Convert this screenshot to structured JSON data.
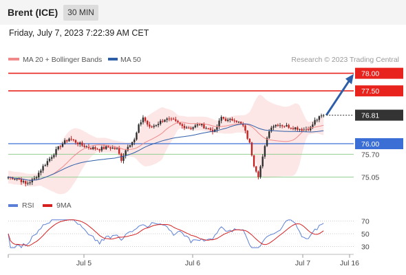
{
  "header": {
    "instrument": "Brent (ICE)",
    "timeframe": "30 MIN",
    "datetime": "Friday, July 7, 2023 7:22:39 AM CET"
  },
  "colors": {
    "resistance": "#e8221c",
    "support_blue": "#3b6fd6",
    "support_green": "#8fcf8f",
    "price_box": "#333333",
    "bollinger_fill": "#fde3e3",
    "ma20": "#f08a8a",
    "ma50": "#2d5ea8",
    "arrow": "#2d5ea8",
    "rsi": "#5b7fd6",
    "rsi_ma": "#d62020"
  },
  "chart_data": [
    {
      "type": "candlestick",
      "title": "",
      "legend": [
        {
          "name": "MA 20 + Bollinger Bands",
          "color": "#f08a8a"
        },
        {
          "name": "MA 50",
          "color": "#2d5ea8"
        }
      ],
      "legend_placement": "top-left",
      "credit": "Research © 2023 Trading Central",
      "x_ticks": [
        "Jul 5",
        "Jul 6",
        "Jul 7",
        "Jul 16"
      ],
      "ylim": [
        74.6,
        78.2
      ],
      "grid": false,
      "current_price": 76.81,
      "levels": [
        {
          "label": "78.00",
          "value": 78.0,
          "style": "resistance",
          "boxed": true
        },
        {
          "label": "77.50",
          "value": 77.5,
          "style": "resistance",
          "boxed": true
        },
        {
          "label": "76.00",
          "value": 76.0,
          "style": "support_blue",
          "boxed": true
        },
        {
          "label": "75.70",
          "value": 75.7,
          "style": "support_green",
          "boxed": false
        },
        {
          "label": "75.05",
          "value": 75.05,
          "style": "support_green",
          "boxed": false
        }
      ],
      "price_label": "76.81",
      "projection": {
        "from": 76.81,
        "to": 78.0
      },
      "keypoints": [
        [
          0,
          75.05
        ],
        [
          5,
          75.0
        ],
        [
          8,
          74.85
        ],
        [
          12,
          75.0
        ],
        [
          16,
          75.35
        ],
        [
          20,
          75.65
        ],
        [
          24,
          75.95
        ],
        [
          28,
          76.15
        ],
        [
          31,
          76.05
        ],
        [
          34,
          75.95
        ],
        [
          38,
          75.88
        ],
        [
          42,
          75.85
        ],
        [
          46,
          75.9
        ],
        [
          50,
          75.85
        ],
        [
          52,
          75.55
        ],
        [
          55,
          75.95
        ],
        [
          58,
          76.1
        ],
        [
          60,
          76.5
        ],
        [
          62,
          76.75
        ],
        [
          65,
          76.45
        ],
        [
          68,
          76.55
        ],
        [
          72,
          76.7
        ],
        [
          76,
          76.65
        ],
        [
          80,
          76.5
        ],
        [
          84,
          76.45
        ],
        [
          88,
          76.55
        ],
        [
          91,
          76.45
        ],
        [
          95,
          76.35
        ],
        [
          98,
          76.75
        ],
        [
          101,
          76.65
        ],
        [
          104,
          76.7
        ],
        [
          106,
          76.6
        ],
        [
          108,
          76.5
        ],
        [
          111,
          76.0
        ],
        [
          113,
          75.4
        ],
        [
          115,
          75.1
        ],
        [
          117,
          75.6
        ],
        [
          119,
          76.2
        ],
        [
          121,
          76.5
        ],
        [
          124,
          76.55
        ],
        [
          128,
          76.5
        ],
        [
          132,
          76.45
        ],
        [
          136,
          76.4
        ],
        [
          139,
          76.45
        ],
        [
          141,
          76.65
        ],
        [
          144,
          76.78
        ],
        [
          145,
          76.81
        ]
      ]
    },
    {
      "type": "line",
      "title": "",
      "legend": [
        {
          "name": "RSI",
          "color": "#5b7fd6"
        },
        {
          "name": "9MA",
          "color": "#d62020"
        }
      ],
      "y_ticks": [
        "70",
        "50",
        "30"
      ],
      "ylim": [
        20,
        80
      ],
      "reference_lines": [
        70,
        50,
        30
      ]
    }
  ]
}
